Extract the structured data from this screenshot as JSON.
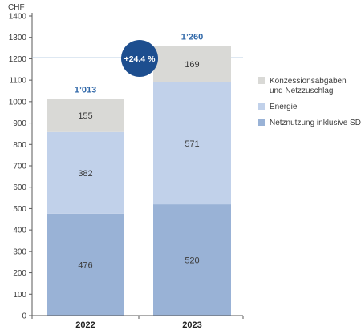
{
  "chart_data": {
    "type": "bar",
    "stacked": true,
    "ylabel": "CHF",
    "ylim": [
      0,
      1400
    ],
    "y_ticks": [
      0,
      100,
      200,
      300,
      400,
      500,
      600,
      700,
      800,
      900,
      1000,
      1100,
      1200,
      1300,
      1400
    ],
    "categories": [
      "2022",
      "2023"
    ],
    "series": [
      {
        "name": "Netznutzung inklusive SDL",
        "values": [
          476,
          520
        ],
        "color": "#99b2d6"
      },
      {
        "name": "Energie",
        "values": [
          382,
          571
        ],
        "color": "#c1d1ea"
      },
      {
        "name": "Konzessionsabgaben und Netzzuschlag",
        "values": [
          155,
          169
        ],
        "color": "#d9d9d6"
      }
    ],
    "totals": [
      "1’013",
      "1’260"
    ],
    "growth_badge": "+24.4 %",
    "reference_line_value": 1205,
    "legend": {
      "placement": "right",
      "items": [
        {
          "lines": [
            "Konzessionsabgaben",
            "und Netzzuschlag"
          ],
          "color": "#d9d9d6"
        },
        {
          "lines": [
            "Energie"
          ],
          "color": "#c1d1ea"
        },
        {
          "lines": [
            "Netznutzung inklusive SDL"
          ],
          "color": "#99b2d6"
        }
      ]
    },
    "colors": {
      "accent": "#1d4e8f",
      "total_label": "#2f67a8",
      "text": "#3c3c3c",
      "axis": "#5a5a5a",
      "reference_line": "#a9c1dd"
    }
  }
}
